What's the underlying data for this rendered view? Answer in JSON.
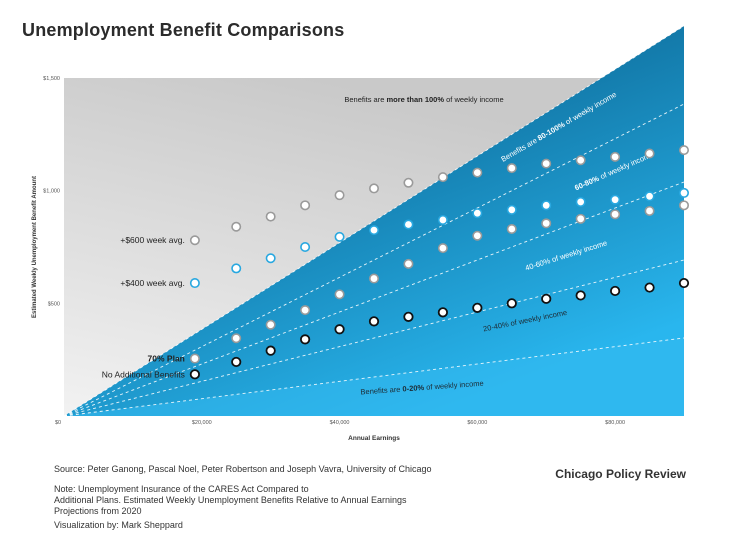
{
  "title": "Unemployment Benefit Comparisons",
  "chart_data": {
    "type": "scatter",
    "xlabel": "Annual Earnings",
    "ylabel": "Estimated Weekly Unemployment Benefit Amount",
    "xlim": [
      0,
      90000
    ],
    "ylim": [
      0,
      1500
    ],
    "x_ticks": [
      {
        "value": 0,
        "label": "$0"
      },
      {
        "value": 20000,
        "label": "$20,000"
      },
      {
        "value": 40000,
        "label": "$40,000"
      },
      {
        "value": 60000,
        "label": "$60,000"
      },
      {
        "value": 80000,
        "label": "$80,000"
      }
    ],
    "y_ticks": [
      {
        "value": 500,
        "label": "$500"
      },
      {
        "value": 1000,
        "label": "$1,000"
      },
      {
        "value": 1500,
        "label": "$1,500"
      }
    ],
    "x": [
      19000,
      25000,
      30000,
      35000,
      40000,
      45000,
      50000,
      55000,
      60000,
      65000,
      70000,
      75000,
      80000,
      85000,
      90000
    ],
    "series": [
      {
        "name": "+$600 week avg.",
        "color": "#9a9a9a",
        "bold": false,
        "values": [
          780,
          840,
          885,
          935,
          980,
          1010,
          1035,
          1060,
          1080,
          1100,
          1120,
          1135,
          1150,
          1165,
          1180
        ]
      },
      {
        "name": "+$400 week avg.",
        "color": "#29a8e0",
        "bold": false,
        "values": [
          590,
          655,
          700,
          750,
          795,
          825,
          850,
          870,
          900,
          915,
          935,
          950,
          960,
          975,
          990
        ]
      },
      {
        "name": "70% Plan",
        "color": "#9a9a9a",
        "bold": true,
        "values": [
          255,
          345,
          405,
          470,
          540,
          610,
          675,
          745,
          800,
          830,
          855,
          875,
          895,
          910,
          935
        ]
      },
      {
        "name": "No Additional Benefits",
        "color": "#111111",
        "bold": false,
        "values": [
          185,
          240,
          290,
          340,
          385,
          420,
          440,
          460,
          480,
          500,
          520,
          535,
          555,
          570,
          590
        ]
      }
    ],
    "bands": [
      {
        "ratio": 1.0,
        "label_before": "Benefits are ",
        "label_bold": "80-100%",
        "label_after": " of weekly income"
      },
      {
        "ratio": 0.8,
        "label_before": "",
        "label_bold": "60-80%",
        "label_after": " of weekly income"
      },
      {
        "ratio": 0.6,
        "label_before": "",
        "label_bold": "",
        "label_after": "40-60% of weekly income"
      },
      {
        "ratio": 0.4,
        "label_before": "",
        "label_bold": "",
        "label_after": "20-40% of weekly income"
      },
      {
        "ratio": 0.2,
        "label_before": "Benefits are ",
        "label_bold": "0-20%",
        "label_after": " of weekly income"
      }
    ],
    "top_annotation": {
      "before": "Benefits are ",
      "bold": "more than 100%",
      "after": " of weekly income"
    }
  },
  "footer": {
    "source": "Source: Peter Ganong, Pascal Noel, Peter Robertson and Joseph Vavra, University of Chicago",
    "note_lines": [
      "Note: Unemployment Insurance of the CARES Act Compared to",
      "Additional Plans. Estimated Weekly Unemployment Benefits Relative to Annual Earnings",
      "Projections from 2020"
    ],
    "credit": "Visualization by: Mark Sheppard",
    "brand": "Chicago Policy Review"
  }
}
